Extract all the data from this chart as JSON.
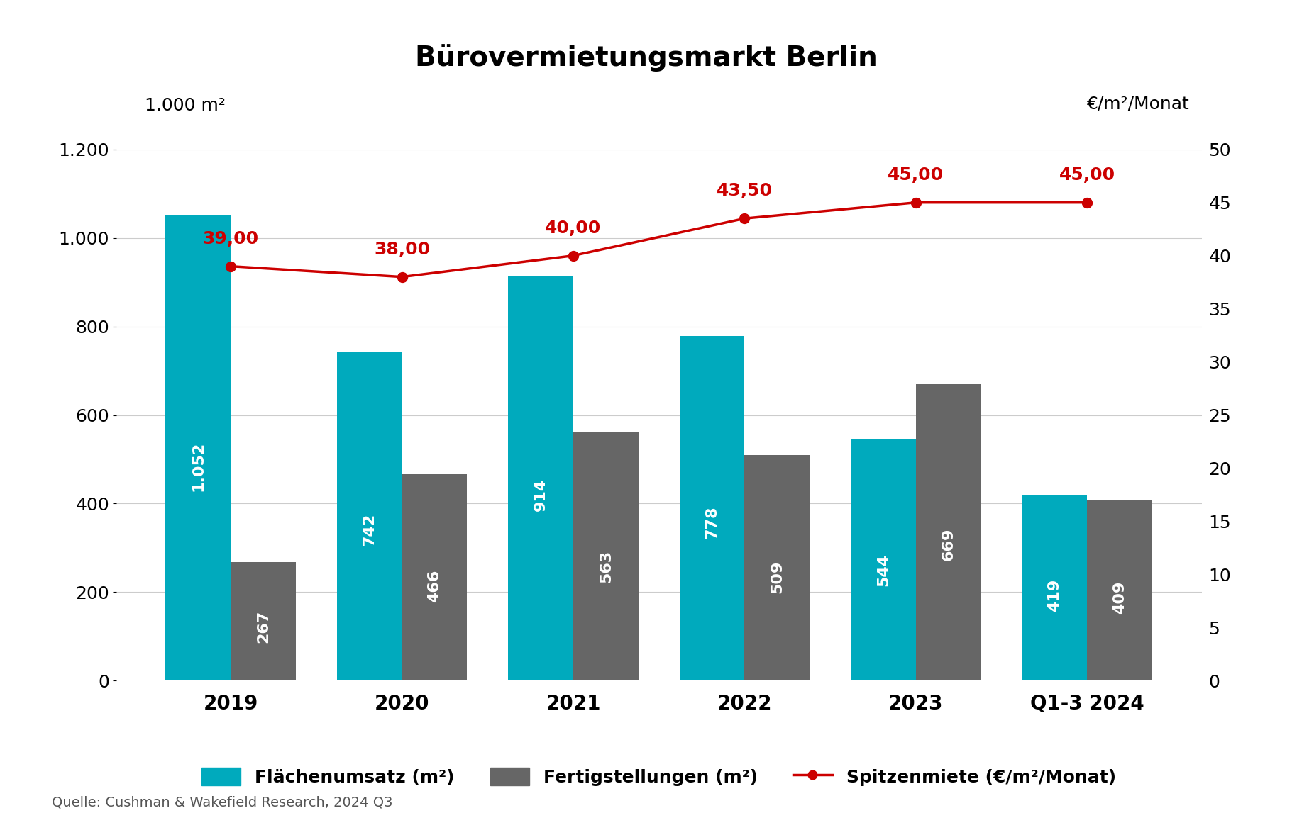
{
  "title": "Bürovermietungsmarkt Berlin",
  "left_ylabel": "1.000 m²",
  "right_ylabel": "€/m²/Monat",
  "source": "Quelle: Cushman & Wakefield Research, 2024 Q3",
  "categories": [
    "2019",
    "2020",
    "2021",
    "2022",
    "2023",
    "Q1-3 2024"
  ],
  "flaeche": [
    1052,
    742,
    914,
    778,
    544,
    419
  ],
  "fertig": [
    267,
    466,
    563,
    509,
    669,
    409
  ],
  "spitze": [
    39.0,
    38.0,
    40.0,
    43.5,
    45.0,
    45.0
  ],
  "spitze_labels": [
    "39,00",
    "38,00",
    "40,00",
    "43,50",
    "45,00",
    "45,00"
  ],
  "flaeche_labels": [
    "1.052",
    "742",
    "914",
    "778",
    "544",
    "419"
  ],
  "fertig_labels": [
    "267",
    "466",
    "563",
    "509",
    "669",
    "409"
  ],
  "color_flaeche": "#00AABD",
  "color_fertig": "#666666",
  "color_line": "#CC0000",
  "color_bg": "#FFFFFF",
  "color_text_white": "#FFFFFF",
  "color_text_red": "#CC0000",
  "color_grid": "#CCCCCC",
  "ylim_left": [
    0,
    1200
  ],
  "ylim_right": [
    0,
    50
  ],
  "yticks_left": [
    0,
    200,
    400,
    600,
    800,
    1000,
    1200
  ],
  "ytick_labels_left": [
    "0",
    "200",
    "400",
    "600",
    "800",
    "1.000",
    "1.200"
  ],
  "yticks_right": [
    0,
    5,
    10,
    15,
    20,
    25,
    30,
    35,
    40,
    45,
    50
  ],
  "bar_width": 0.38,
  "legend_flaeche": "Flächenumsatz (m²)",
  "legend_fertig": "Fertigstellungen (m²)",
  "legend_spitze": "Spitzenmiete (€/m²/Monat)"
}
